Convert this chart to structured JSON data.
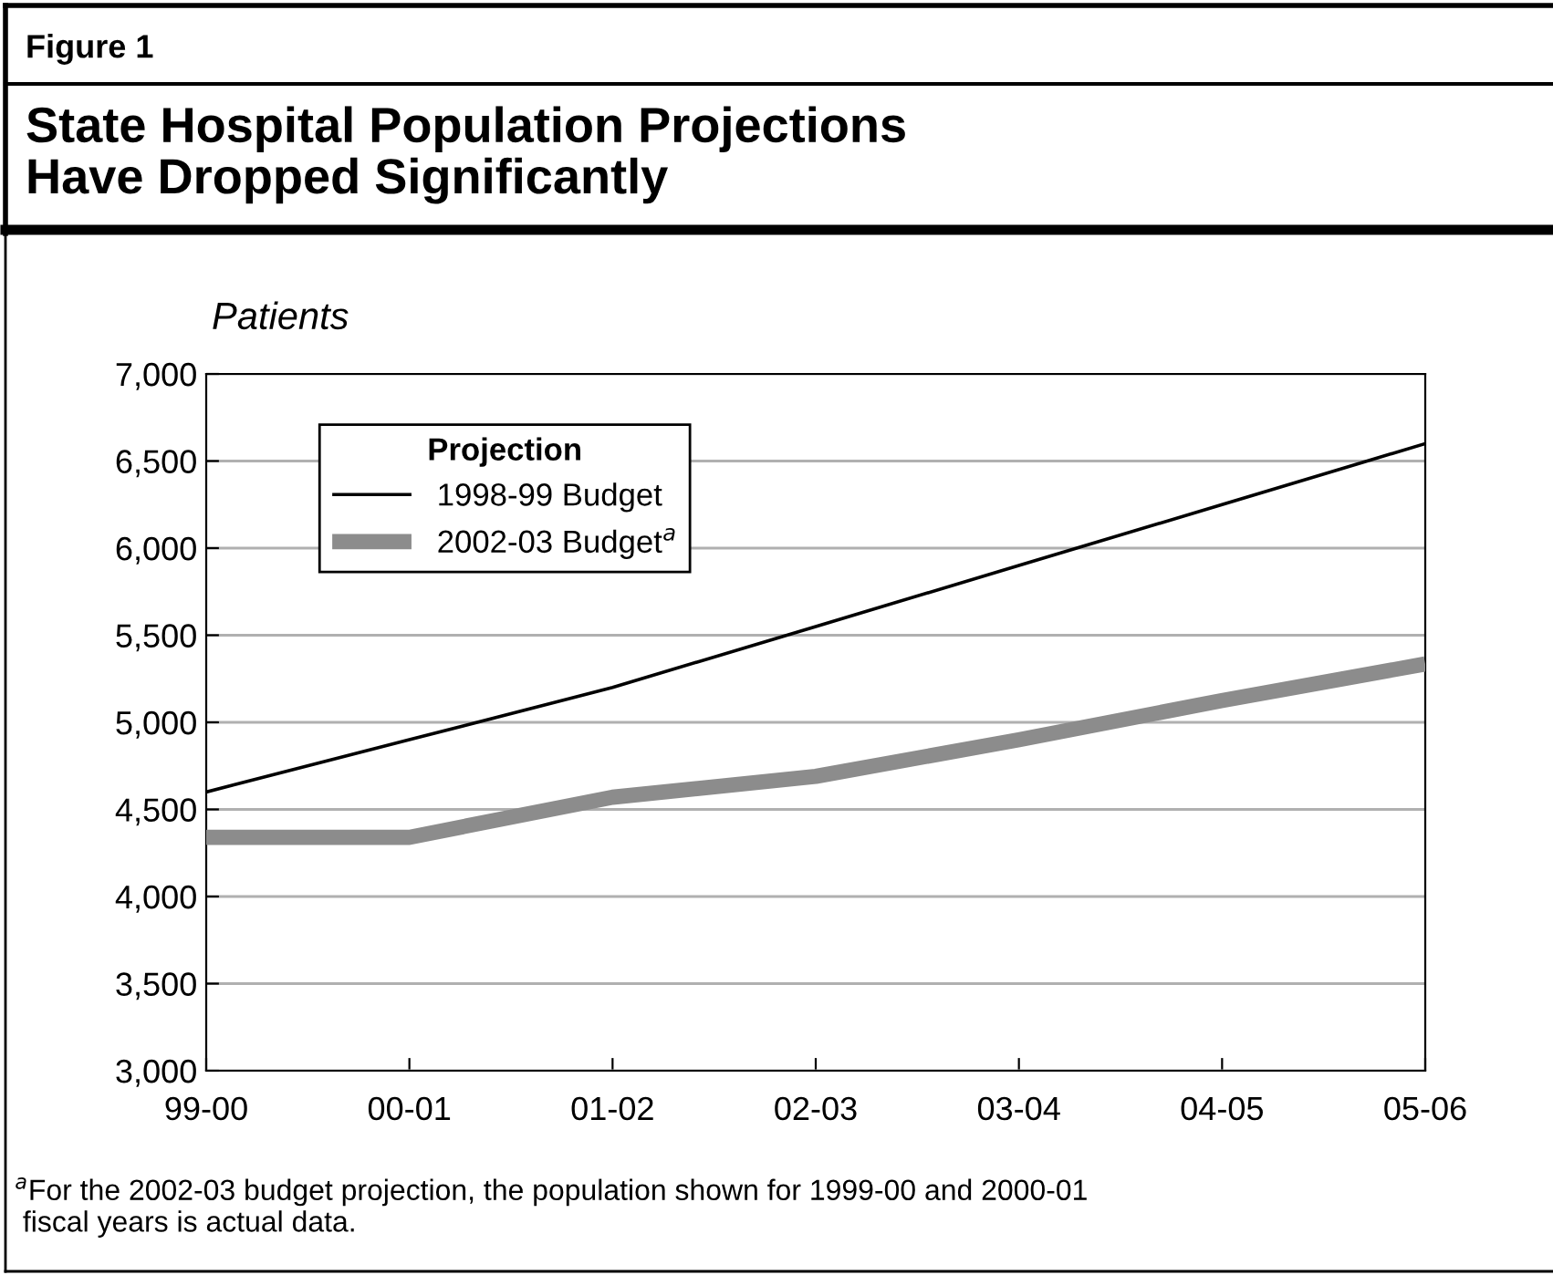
{
  "chart_data": {
    "type": "line",
    "subtitle": "Figure 1",
    "title": "State Hospital Population Projections\nHave Dropped Significantly",
    "ylabel": "Patients",
    "categories": [
      "99-00",
      "00-01",
      "01-02",
      "02-03",
      "03-04",
      "04-05",
      "05-06"
    ],
    "series": [
      {
        "name": "1998-99 Budget",
        "color": "#000000",
        "values": [
          4600,
          4900,
          5200,
          5550,
          5900,
          6250,
          6600
        ]
      },
      {
        "name": "2002-03 Budget$^{a}$",
        "color": "#8c8c8c",
        "values": [
          4340,
          4340,
          4570,
          4690,
          4900,
          5125,
          5335
        ]
      }
    ],
    "legend_title": "Projection",
    "legend": "top left",
    "ylim": [
      3000,
      7000
    ],
    "yticks": [
      {
        "value": 3000,
        "label": "3,000"
      },
      {
        "value": 3500,
        "label": "3,500"
      },
      {
        "value": 4000,
        "label": "4,000"
      },
      {
        "value": 4500,
        "label": "4,500"
      },
      {
        "value": 5000,
        "label": "5,000"
      },
      {
        "value": 5500,
        "label": "5,500"
      },
      {
        "value": 6000,
        "label": "6,000"
      },
      {
        "value": 6500,
        "label": "6,500"
      },
      {
        "value": 7000,
        "label": "7,000"
      }
    ],
    "grid": "y",
    "annotations": [
      "$^{a}$For the 2002-03 budget projection, the population shown for 1999-00 and 2000-01\n fiscal years is actual data."
    ]
  }
}
